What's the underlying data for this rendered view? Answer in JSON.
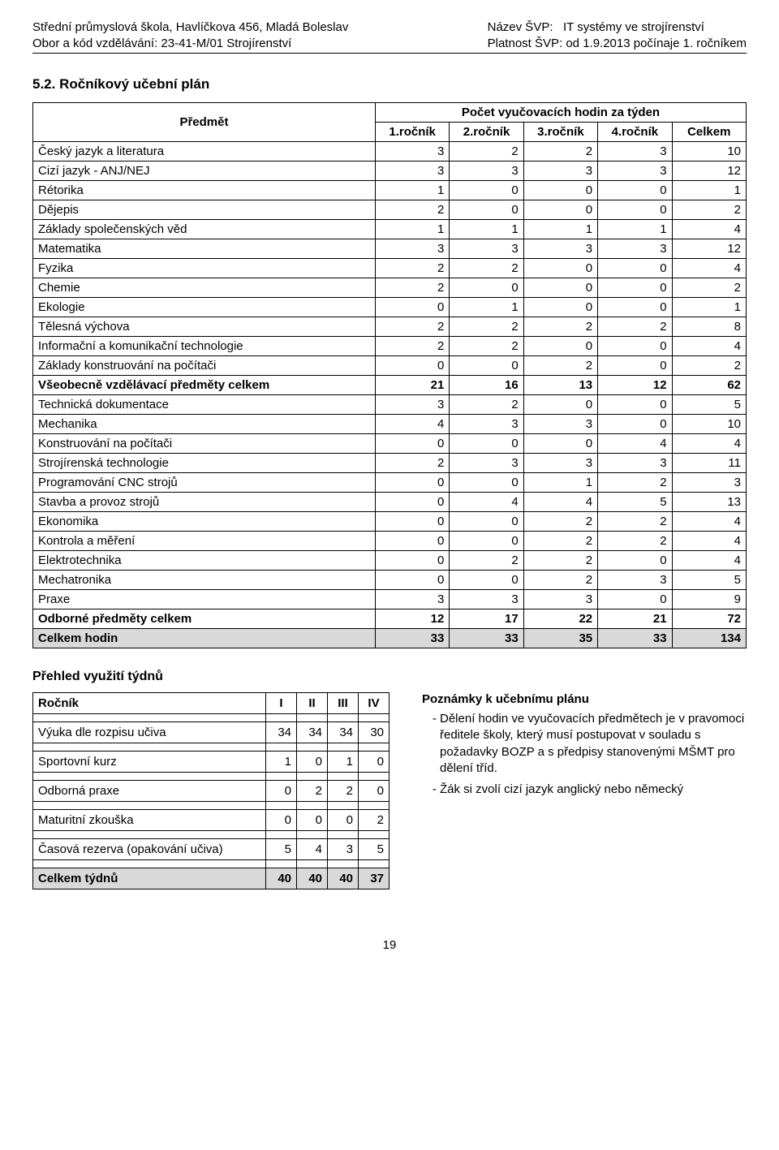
{
  "header": {
    "left_line1": "Střední průmyslová škola, Havlíčkova 456, Mladá Boleslav",
    "left_line2": "Obor a kód vzdělávání: 23-41-M/01 Strojírenství",
    "right_line1_label": "Název ŠVP:",
    "right_line1_value": "IT systémy ve strojírenství",
    "right_line2": "Platnost ŠVP: od 1.9.2013 počínaje 1. ročníkem"
  },
  "section_title": "5.2. Ročníkový učební plán",
  "main_table": {
    "subject_header": "Předmět",
    "super_header": "Počet vyučovacích hodin za týden",
    "columns": [
      "1.ročník",
      "2.ročník",
      "3.ročník",
      "4.ročník",
      "Celkem"
    ],
    "rows": [
      {
        "label": "Český jazyk a literatura",
        "vals": [
          3,
          2,
          2,
          3,
          10
        ]
      },
      {
        "label": "Cizí jazyk - ANJ/NEJ",
        "vals": [
          3,
          3,
          3,
          3,
          12
        ]
      },
      {
        "label": "Rétorika",
        "vals": [
          1,
          0,
          0,
          0,
          1
        ]
      },
      {
        "label": "Dějepis",
        "vals": [
          2,
          0,
          0,
          0,
          2
        ]
      },
      {
        "label": "Základy společenských věd",
        "vals": [
          1,
          1,
          1,
          1,
          4
        ]
      },
      {
        "label": "Matematika",
        "vals": [
          3,
          3,
          3,
          3,
          12
        ]
      },
      {
        "label": "Fyzika",
        "vals": [
          2,
          2,
          0,
          0,
          4
        ]
      },
      {
        "label": "Chemie",
        "vals": [
          2,
          0,
          0,
          0,
          2
        ]
      },
      {
        "label": "Ekologie",
        "vals": [
          0,
          1,
          0,
          0,
          1
        ]
      },
      {
        "label": "Tělesná výchova",
        "vals": [
          2,
          2,
          2,
          2,
          8
        ]
      },
      {
        "label": "Informační a komunikační technologie",
        "vals": [
          2,
          2,
          0,
          0,
          4
        ]
      },
      {
        "label": "Základy konstruování na počítači",
        "vals": [
          0,
          0,
          2,
          0,
          2
        ]
      },
      {
        "label": "Všeobecně vzdělávací předměty celkem",
        "vals": [
          21,
          16,
          13,
          12,
          62
        ],
        "bold": true
      },
      {
        "label": "Technická dokumentace",
        "vals": [
          3,
          2,
          0,
          0,
          5
        ]
      },
      {
        "label": "Mechanika",
        "vals": [
          4,
          3,
          3,
          0,
          10
        ]
      },
      {
        "label": "Konstruování na počítači",
        "vals": [
          0,
          0,
          0,
          4,
          4
        ]
      },
      {
        "label": "Strojírenská technologie",
        "vals": [
          2,
          3,
          3,
          3,
          11
        ]
      },
      {
        "label": "Programování CNC strojů",
        "vals": [
          0,
          0,
          1,
          2,
          3
        ]
      },
      {
        "label": "Stavba a provoz strojů",
        "vals": [
          0,
          4,
          4,
          5,
          13
        ]
      },
      {
        "label": "Ekonomika",
        "vals": [
          0,
          0,
          2,
          2,
          4
        ]
      },
      {
        "label": "Kontrola a měření",
        "vals": [
          0,
          0,
          2,
          2,
          4
        ]
      },
      {
        "label": "Elektrotechnika",
        "vals": [
          0,
          2,
          2,
          0,
          4
        ]
      },
      {
        "label": "Mechatronika",
        "vals": [
          0,
          0,
          2,
          3,
          5
        ]
      },
      {
        "label": "Praxe",
        "vals": [
          3,
          3,
          3,
          0,
          9
        ]
      },
      {
        "label": "Odborné předměty celkem",
        "vals": [
          12,
          17,
          22,
          21,
          72
        ],
        "bold": true
      },
      {
        "label": "Celkem hodin",
        "vals": [
          33,
          33,
          35,
          33,
          134
        ],
        "shaded": true
      }
    ]
  },
  "weeks_title": "Přehled využití týdnů",
  "weeks_table": {
    "header_label": "Ročník",
    "columns": [
      "I",
      "II",
      "III",
      "IV"
    ],
    "rows": [
      {
        "label": "Výuka dle rozpisu učiva",
        "vals": [
          34,
          34,
          34,
          30
        ]
      },
      {
        "label": "Sportovní kurz",
        "vals": [
          1,
          0,
          1,
          0
        ]
      },
      {
        "label": "Odborná praxe",
        "vals": [
          0,
          2,
          2,
          0
        ]
      },
      {
        "label": "Maturitní zkouška",
        "vals": [
          0,
          0,
          0,
          2
        ]
      },
      {
        "label": "Časová rezerva (opakování učiva)",
        "vals": [
          5,
          4,
          3,
          5
        ]
      },
      {
        "label": "Celkem týdnů",
        "vals": [
          40,
          40,
          40,
          37
        ],
        "shaded": true
      }
    ]
  },
  "notes": {
    "title": "Poznámky k učebnímu plánu",
    "items": [
      "Dělení hodin ve vyučovacích předmětech je v pravomoci ředitele školy, který musí postupovat v souladu s požadavky BOZP a s předpisy stanovenými MŠMT pro dělení tříd.",
      "Žák si zvolí cizí jazyk anglický nebo německý"
    ]
  },
  "page_number": "19"
}
